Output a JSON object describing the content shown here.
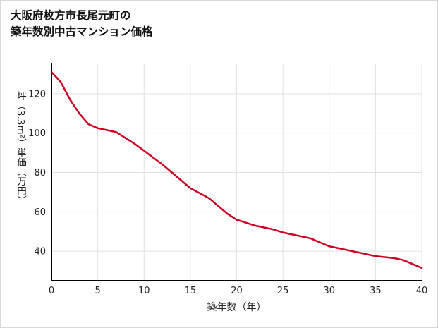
{
  "page": {
    "title_line1": "大阪府枚方市長尾元町の",
    "title_line2": "築年数別中古マンション価格"
  },
  "chart_data": {
    "type": "line",
    "title": "大阪府枚方市長尾元町の築年数別中古マンション価格",
    "xlabel": "築年数（年）",
    "ylabel": "坪（3.3m²）単価（万円）",
    "x": [
      0,
      1,
      2,
      3,
      4,
      5,
      6,
      7,
      8,
      9,
      10,
      11,
      12,
      13,
      14,
      15,
      16,
      17,
      18,
      19,
      20,
      21,
      22,
      23,
      24,
      25,
      26,
      27,
      28,
      29,
      30,
      31,
      32,
      33,
      34,
      35,
      36,
      37,
      38,
      39,
      40
    ],
    "values": [
      131,
      126,
      117,
      110,
      104.5,
      102.5,
      101.5,
      100.5,
      97.5,
      94.5,
      91,
      87.5,
      84,
      80,
      76,
      72,
      69.5,
      67,
      63,
      59,
      56,
      54.5,
      53,
      52,
      51,
      49.5,
      48.5,
      47.5,
      46.5,
      44.5,
      42.5,
      41.5,
      40.5,
      39.5,
      38.5,
      37.5,
      37,
      36.5,
      35.5,
      33.5,
      31.5
    ],
    "xticks": [
      0,
      5,
      10,
      15,
      20,
      25,
      30,
      35,
      40
    ],
    "yticks": [
      40,
      60,
      80,
      100,
      120
    ],
    "xlim": [
      0,
      40
    ],
    "ylim": [
      25,
      135
    ],
    "grid": true,
    "legend": "none",
    "line_color": "#cc0022",
    "axis_color": "#000000",
    "grid_color": "#e0e0e0"
  }
}
